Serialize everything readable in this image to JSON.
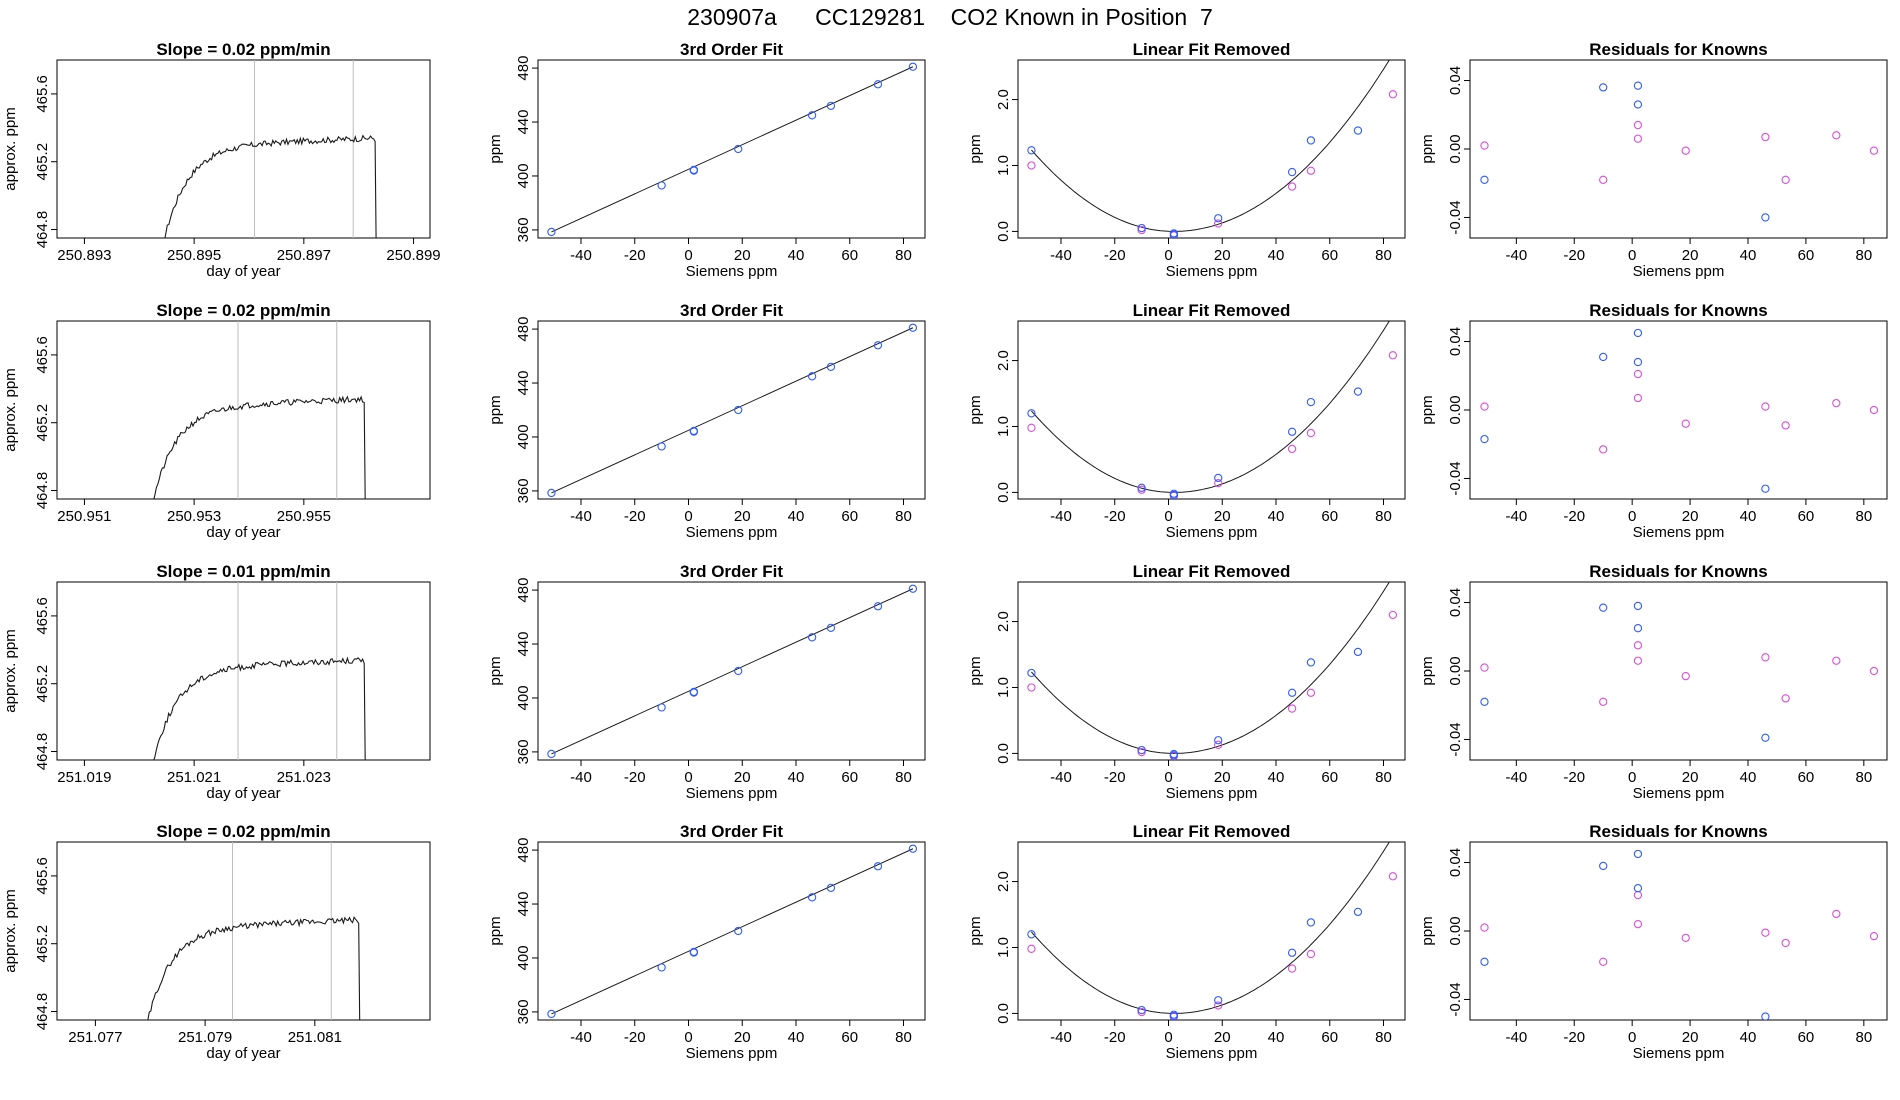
{
  "page": {
    "title": "230907a      CC129281    CO2 Known in Position  7"
  },
  "colors": {
    "axis": "#000000",
    "trace": "#1a1a1a",
    "vline": "#bdbdbd",
    "blue": "#2e5bff",
    "magenta": "#d94ed9",
    "fit": "#1a1a1a"
  },
  "chart_data": [
    {
      "type": "line",
      "row": 1,
      "title": "Slope =  0.02  ppm/min",
      "xlabel": "day of year",
      "ylabel": "approx. ppm",
      "xticks": [
        "250.893",
        "250.895",
        "250.897",
        "250.899"
      ],
      "yticks": [
        "464.8",
        "465.2",
        "465.6"
      ],
      "xlim": [
        250.8925,
        250.8993
      ],
      "ylim": [
        464.75,
        465.8
      ],
      "vlines": [
        250.8961,
        250.8979
      ],
      "trace_start": 250.8944,
      "trace_end": 250.8983,
      "plateau": 465.31
    },
    {
      "type": "scatter",
      "row": 1,
      "title": "3rd Order Fit",
      "xlabel": "Siemens ppm",
      "ylabel": "ppm",
      "xticks": [
        "-40",
        "-20",
        "0",
        "20",
        "40",
        "60",
        "80"
      ],
      "yticks": [
        "360",
        "400",
        "440",
        "480"
      ],
      "xlim": [
        -56,
        88
      ],
      "ylim": [
        354,
        486
      ],
      "points_x": [
        -51,
        -10,
        2,
        2,
        18.5,
        46,
        53,
        70.5,
        83.5
      ],
      "points_y": [
        358.5,
        393,
        404,
        404.5,
        420,
        445,
        452,
        468,
        481
      ]
    },
    {
      "type": "scatter",
      "row": 1,
      "title": "Linear Fit Removed",
      "xlabel": "Siemens ppm",
      "ylabel": "ppm",
      "xticks": [
        "-40",
        "-20",
        "0",
        "20",
        "40",
        "60",
        "80"
      ],
      "yticks": [
        "0.0",
        "1.0",
        "2.0"
      ],
      "xlim": [
        -56,
        88
      ],
      "ylim": [
        -0.1,
        2.6
      ],
      "blue_x": [
        -51,
        -10,
        2,
        2,
        18.5,
        46,
        53,
        70.5
      ],
      "blue_y": [
        1.23,
        0.05,
        -0.03,
        -0.05,
        0.2,
        0.9,
        1.38,
        1.53
      ],
      "magenta_x": [
        -51,
        -10,
        2,
        18.5,
        46,
        53,
        83.5
      ],
      "magenta_y": [
        1.0,
        0.02,
        -0.06,
        0.12,
        0.68,
        0.92,
        2.08
      ],
      "curve": [
        0.0,
        0.0,
        0.0004,
        0.0
      ]
    },
    {
      "type": "scatter",
      "row": 1,
      "title": "Residuals for Knowns",
      "xlabel": "Siemens ppm",
      "ylabel": "ppm",
      "xticks": [
        "-40",
        "-20",
        "0",
        "20",
        "40",
        "60",
        "80"
      ],
      "yticks": [
        "-0.04",
        "0.00",
        "0.04"
      ],
      "xlim": [
        -56,
        88
      ],
      "ylim": [
        -0.052,
        0.052
      ],
      "blue_x": [
        -51,
        -10,
        2,
        2,
        46
      ],
      "blue_y": [
        -0.018,
        0.036,
        0.037,
        0.026,
        -0.04
      ],
      "magenta_x": [
        -51,
        -10,
        2,
        2,
        18.5,
        46,
        53,
        70.5,
        83.5
      ],
      "magenta_y": [
        0.002,
        -0.018,
        0.014,
        0.006,
        -0.001,
        0.007,
        -0.018,
        0.008,
        -0.001
      ]
    },
    {
      "type": "line",
      "row": 2,
      "title": "Slope =  0.02  ppm/min",
      "xlabel": "day of year",
      "ylabel": "approx. ppm",
      "xticks": [
        "250.951",
        "250.953",
        "250.955"
      ],
      "yticks": [
        "464.8",
        "465.2",
        "465.6"
      ],
      "xlim": [
        250.9505,
        250.9573
      ],
      "ylim": [
        464.75,
        465.8
      ],
      "vlines": [
        250.9538,
        250.9556
      ],
      "trace_start": 250.9522,
      "trace_end": 250.9561,
      "plateau": 465.31
    },
    {
      "type": "scatter",
      "row": 2,
      "title": "3rd Order Fit",
      "xlabel": "Siemens ppm",
      "ylabel": "ppm",
      "xticks": [
        "-40",
        "-20",
        "0",
        "20",
        "40",
        "60",
        "80"
      ],
      "yticks": [
        "360",
        "400",
        "440",
        "480"
      ],
      "xlim": [
        -56,
        88
      ],
      "ylim": [
        354,
        486
      ],
      "points_x": [
        -51,
        -10,
        2,
        2,
        18.5,
        46,
        53,
        70.5,
        83.5
      ],
      "points_y": [
        358.5,
        393,
        404,
        404.5,
        420,
        445,
        452,
        468,
        481
      ]
    },
    {
      "type": "scatter",
      "row": 2,
      "title": "Linear Fit Removed",
      "xlabel": "Siemens ppm",
      "ylabel": "ppm",
      "xticks": [
        "-40",
        "-20",
        "0",
        "20",
        "40",
        "60",
        "80"
      ],
      "yticks": [
        "0.0",
        "1.0",
        "2.0"
      ],
      "xlim": [
        -56,
        88
      ],
      "ylim": [
        -0.1,
        2.6
      ],
      "blue_x": [
        -51,
        -10,
        2,
        2,
        18.5,
        46,
        53,
        70.5
      ],
      "blue_y": [
        1.2,
        0.07,
        -0.02,
        -0.04,
        0.22,
        0.92,
        1.37,
        1.53
      ],
      "magenta_x": [
        -51,
        -10,
        2,
        18.5,
        46,
        53,
        83.5
      ],
      "magenta_y": [
        0.98,
        0.04,
        -0.05,
        0.14,
        0.66,
        0.9,
        2.08
      ],
      "curve": [
        0.0,
        0.0,
        0.0004,
        0.0
      ]
    },
    {
      "type": "scatter",
      "row": 2,
      "title": "Residuals for Knowns",
      "xlabel": "Siemens ppm",
      "ylabel": "ppm",
      "xticks": [
        "-40",
        "-20",
        "0",
        "20",
        "40",
        "60",
        "80"
      ],
      "yticks": [
        "-0.04",
        "0.00",
        "0.04"
      ],
      "xlim": [
        -56,
        88
      ],
      "ylim": [
        -0.052,
        0.052
      ],
      "blue_x": [
        -51,
        -10,
        2,
        2,
        46
      ],
      "blue_y": [
        -0.017,
        0.031,
        0.045,
        0.028,
        -0.046
      ],
      "magenta_x": [
        -51,
        -10,
        2,
        2,
        18.5,
        46,
        53,
        70.5,
        83.5
      ],
      "magenta_y": [
        0.002,
        -0.023,
        0.021,
        0.007,
        -0.008,
        0.002,
        -0.009,
        0.004,
        0.0
      ]
    },
    {
      "type": "line",
      "row": 3,
      "title": "Slope =  0.01  ppm/min",
      "xlabel": "day of year",
      "ylabel": "approx. ppm",
      "xticks": [
        "251.019",
        "251.021",
        "251.023"
      ],
      "yticks": [
        "464.8",
        "465.2",
        "465.6"
      ],
      "xlim": [
        251.0185,
        251.0253
      ],
      "ylim": [
        464.75,
        465.8
      ],
      "vlines": [
        251.0218,
        251.0236
      ],
      "trace_start": 251.0202,
      "trace_end": 251.0241,
      "plateau": 465.31
    },
    {
      "type": "scatter",
      "row": 3,
      "title": "3rd Order Fit",
      "xlabel": "Siemens ppm",
      "ylabel": "ppm",
      "xticks": [
        "-40",
        "-20",
        "0",
        "20",
        "40",
        "60",
        "80"
      ],
      "yticks": [
        "360",
        "400",
        "440",
        "480"
      ],
      "xlim": [
        -56,
        88
      ],
      "ylim": [
        354,
        486
      ],
      "points_x": [
        -51,
        -10,
        2,
        2,
        18.5,
        46,
        53,
        70.5,
        83.5
      ],
      "points_y": [
        358.5,
        393,
        404,
        404.5,
        420,
        445,
        452,
        468,
        481
      ]
    },
    {
      "type": "scatter",
      "row": 3,
      "title": "Linear Fit Removed",
      "xlabel": "Siemens ppm",
      "ylabel": "ppm",
      "xticks": [
        "-40",
        "-20",
        "0",
        "20",
        "40",
        "60",
        "80"
      ],
      "yticks": [
        "0.0",
        "1.0",
        "2.0"
      ],
      "xlim": [
        -56,
        88
      ],
      "ylim": [
        -0.1,
        2.6
      ],
      "blue_x": [
        -51,
        -10,
        2,
        2,
        18.5,
        46,
        53,
        70.5
      ],
      "blue_y": [
        1.22,
        0.05,
        -0.01,
        -0.03,
        0.2,
        0.92,
        1.38,
        1.54
      ],
      "magenta_x": [
        -51,
        -10,
        2,
        18.5,
        46,
        53,
        83.5
      ],
      "magenta_y": [
        1.0,
        0.02,
        -0.04,
        0.13,
        0.68,
        0.92,
        2.1
      ],
      "curve": [
        0.0,
        0.0,
        0.0004,
        0.0
      ]
    },
    {
      "type": "scatter",
      "row": 3,
      "title": "Residuals for Knowns",
      "xlabel": "Siemens ppm",
      "ylabel": "ppm",
      "xticks": [
        "-40",
        "-20",
        "0",
        "20",
        "40",
        "60",
        "80"
      ],
      "yticks": [
        "-0.04",
        "0.00",
        "0.04"
      ],
      "xlim": [
        -56,
        88
      ],
      "ylim": [
        -0.052,
        0.052
      ],
      "blue_x": [
        -51,
        -10,
        2,
        2,
        46
      ],
      "blue_y": [
        -0.018,
        0.037,
        0.038,
        0.025,
        -0.039
      ],
      "magenta_x": [
        -51,
        -10,
        2,
        2,
        18.5,
        46,
        53,
        70.5,
        83.5
      ],
      "magenta_y": [
        0.002,
        -0.018,
        0.015,
        0.006,
        -0.003,
        0.008,
        -0.016,
        0.006,
        0.0
      ]
    },
    {
      "type": "line",
      "row": 4,
      "title": "Slope =  0.02  ppm/min",
      "xlabel": "day of year",
      "ylabel": "approx. ppm",
      "xticks": [
        "251.077",
        "251.079",
        "251.081"
      ],
      "yticks": [
        "464.8",
        "465.2",
        "465.6"
      ],
      "xlim": [
        251.0763,
        251.0831
      ],
      "ylim": [
        464.75,
        465.8
      ],
      "vlines": [
        251.0795,
        251.0813
      ],
      "trace_start": 251.0779,
      "trace_end": 251.0818,
      "plateau": 465.31
    },
    {
      "type": "scatter",
      "row": 4,
      "title": "3rd Order Fit",
      "xlabel": "Siemens ppm",
      "ylabel": "ppm",
      "xticks": [
        "-40",
        "-20",
        "0",
        "20",
        "40",
        "60",
        "80"
      ],
      "yticks": [
        "360",
        "400",
        "440",
        "480"
      ],
      "xlim": [
        -56,
        88
      ],
      "ylim": [
        354,
        486
      ],
      "points_x": [
        -51,
        -10,
        2,
        2,
        18.5,
        46,
        53,
        70.5,
        83.5
      ],
      "points_y": [
        358.5,
        393,
        404,
        404.5,
        420,
        445,
        452,
        468,
        481
      ]
    },
    {
      "type": "scatter",
      "row": 4,
      "title": "Linear Fit Removed",
      "xlabel": "Siemens ppm",
      "ylabel": "ppm",
      "xticks": [
        "-40",
        "-20",
        "0",
        "20",
        "40",
        "60",
        "80"
      ],
      "yticks": [
        "0.0",
        "1.0",
        "2.0"
      ],
      "xlim": [
        -56,
        88
      ],
      "ylim": [
        -0.1,
        2.6
      ],
      "blue_x": [
        -51,
        -10,
        2,
        2,
        18.5,
        46,
        53,
        70.5
      ],
      "blue_y": [
        1.2,
        0.05,
        -0.02,
        -0.04,
        0.2,
        0.92,
        1.38,
        1.54
      ],
      "magenta_x": [
        -51,
        -10,
        2,
        18.5,
        46,
        53,
        83.5
      ],
      "magenta_y": [
        0.98,
        0.02,
        -0.05,
        0.12,
        0.68,
        0.9,
        2.08
      ],
      "curve": [
        0.0,
        0.0,
        0.0004,
        0.0
      ]
    },
    {
      "type": "scatter",
      "row": 4,
      "title": "Residuals for Knowns",
      "xlabel": "Siemens ppm",
      "ylabel": "ppm",
      "xticks": [
        "-40",
        "-20",
        "0",
        "20",
        "40",
        "60",
        "80"
      ],
      "yticks": [
        "-0.04",
        "0.00",
        "0.04"
      ],
      "xlim": [
        -56,
        88
      ],
      "ylim": [
        -0.052,
        0.052
      ],
      "blue_x": [
        -51,
        -10,
        2,
        2,
        46
      ],
      "blue_y": [
        -0.018,
        0.038,
        0.045,
        0.025,
        -0.05
      ],
      "magenta_x": [
        -51,
        -10,
        2,
        2,
        18.5,
        46,
        53,
        70.5,
        83.5
      ],
      "magenta_y": [
        0.002,
        -0.018,
        0.021,
        0.004,
        -0.004,
        -0.001,
        -0.007,
        0.01,
        -0.003
      ]
    }
  ]
}
